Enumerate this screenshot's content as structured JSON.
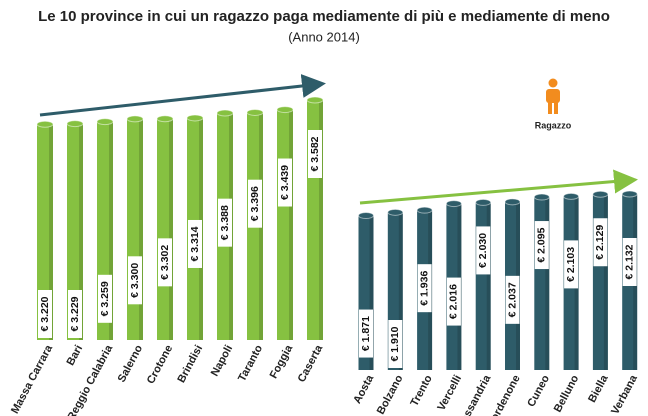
{
  "title": "Le 10 province in cui un ragazzo paga mediamente di più e mediamente di meno",
  "subtitle": "(Anno 2014)",
  "legend_label": "Ragazzo",
  "chart_data": [
    {
      "type": "bar",
      "color": "#86c141",
      "categories": [
        "Massa Carrara",
        "Bari",
        "Reggio Calabria",
        "Salerno",
        "Crotone",
        "Brindisi",
        "Napoli",
        "Taranto",
        "Foggia",
        "Caserta"
      ],
      "values": [
        3220,
        3229,
        3259,
        3300,
        3302,
        3314,
        3388,
        3396,
        3439,
        3582
      ],
      "value_labels": [
        "€ 3.220",
        "€ 3.229",
        "€ 3.259",
        "€ 3.300",
        "€ 3.302",
        "€ 3.314",
        "€ 3.388",
        "€ 3.396",
        "€ 3.439",
        "€ 3.582"
      ]
    },
    {
      "type": "bar",
      "color": "#2e5c69",
      "categories": [
        "Aosta",
        "Bolzano",
        "Trento",
        "Vercelli",
        "Alessandria",
        "Pordenone",
        "Cuneo",
        "Belluno",
        "Biella",
        "Verbana"
      ],
      "values": [
        1871,
        1910,
        1936,
        2016,
        2030,
        2037,
        2095,
        2103,
        2129,
        2132
      ],
      "value_labels": [
        "€ 1.871",
        "€ 1.910",
        "€ 1.936",
        "€ 2.016",
        "€ 2.030",
        "€ 2.037",
        "€ 2.095",
        "€ 2.103",
        "€ 2.129",
        "€ 2.132"
      ]
    }
  ]
}
